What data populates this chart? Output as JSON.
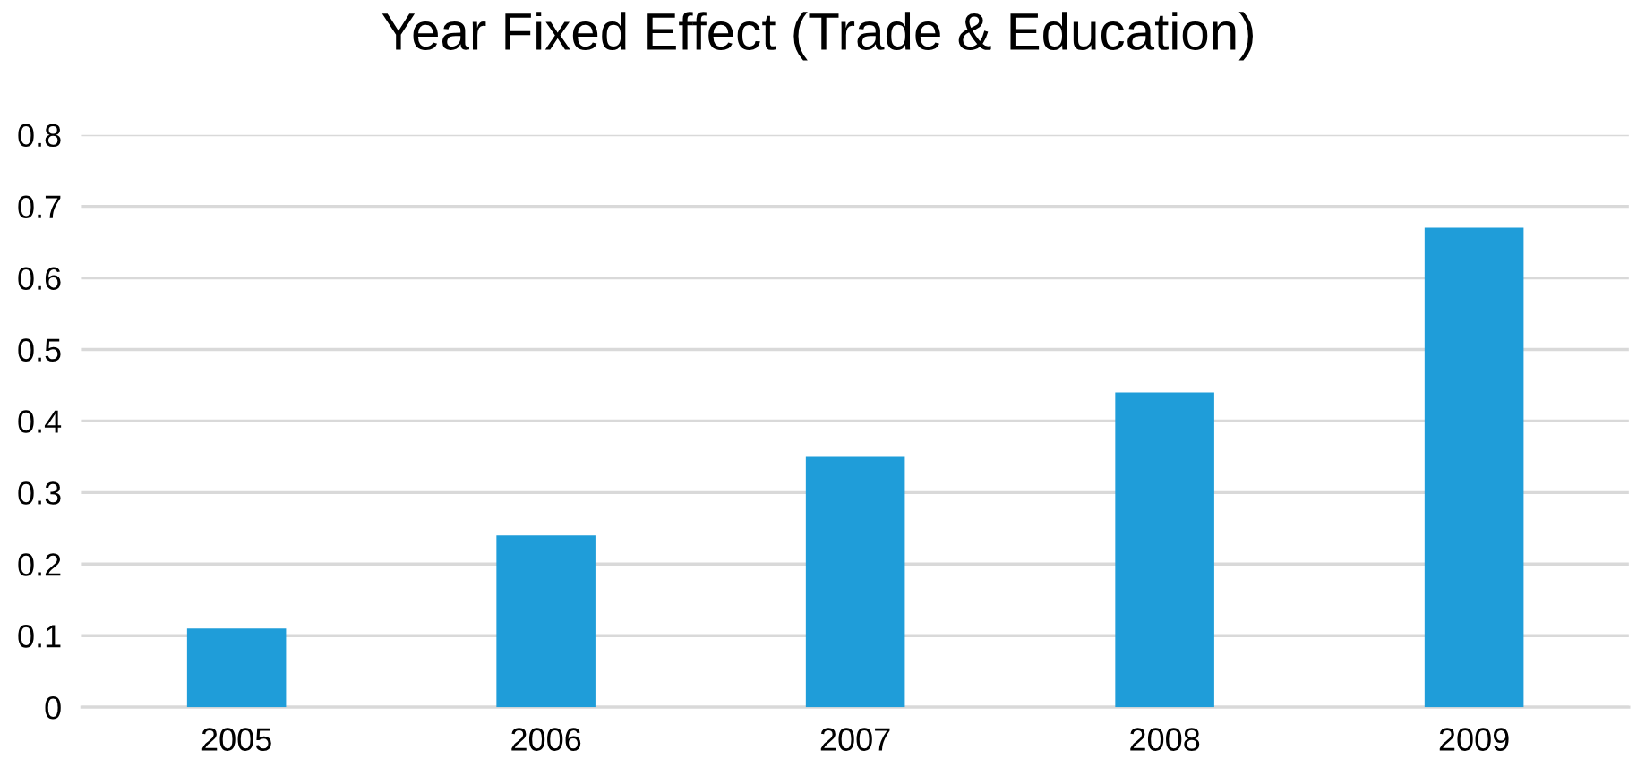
{
  "chart_data": {
    "type": "bar",
    "title": "Year Fixed Effect (Trade & Education)",
    "categories": [
      "2005",
      "2006",
      "2007",
      "2008",
      "2009"
    ],
    "values": [
      0.11,
      0.24,
      0.35,
      0.44,
      0.67
    ],
    "color": "#1f9dd9",
    "ylim": [
      0,
      0.8
    ],
    "yticks": [
      0,
      0.1,
      0.2,
      0.3,
      0.4,
      0.5,
      0.6,
      0.7,
      0.8
    ],
    "grid": "y"
  }
}
